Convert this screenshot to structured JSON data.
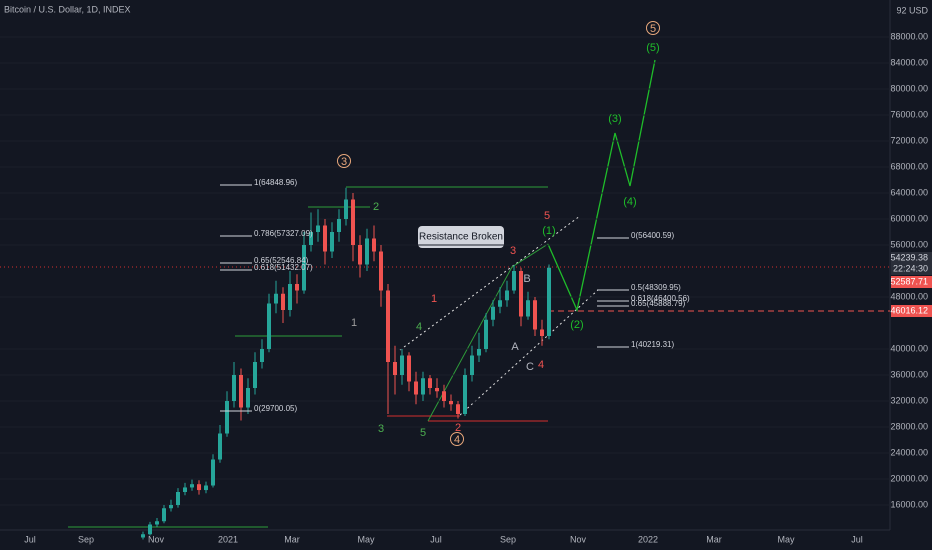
{
  "chart_data": {
    "type": "candlestick",
    "title": "Bitcoin / U.S. Dollar, 1D, INDEX",
    "currency": "92 USD",
    "up_color": "#26a69a",
    "down_color": "#ef5350",
    "ylim": [
      12154,
      93692
    ],
    "yticks": [
      {
        "value": 16000,
        "label": "16000.00"
      },
      {
        "value": 20000,
        "label": "20000.00"
      },
      {
        "value": 24000,
        "label": "24000.00"
      },
      {
        "value": 28000,
        "label": "28000.00"
      },
      {
        "value": 32000,
        "label": "32000.00"
      },
      {
        "value": 36000,
        "label": "36000.00"
      },
      {
        "value": 40000,
        "label": "40000.00"
      },
      {
        "value": 48000,
        "label": "48000.00"
      },
      {
        "value": 56000,
        "label": "56000.00"
      },
      {
        "value": 60000,
        "label": "60000.00"
      },
      {
        "value": 64000,
        "label": "64000.00"
      },
      {
        "value": 68000,
        "label": "68000.00"
      },
      {
        "value": 72000,
        "label": "72000.00"
      },
      {
        "value": 76000,
        "label": "76000.00"
      },
      {
        "value": 80000,
        "label": "80000.00"
      },
      {
        "value": 84000,
        "label": "84000.00"
      },
      {
        "value": 88000,
        "label": "88000.00"
      }
    ],
    "xticks": [
      "Jul",
      "Sep",
      "Nov",
      "2021",
      "Mar",
      "May",
      "Jul",
      "Sep",
      "Nov",
      "2022",
      "Mar",
      "May",
      "Jul"
    ],
    "ohlc": [
      [
        11000,
        11900,
        10700,
        11500
      ],
      [
        11500,
        13400,
        11300,
        13000
      ],
      [
        13000,
        14000,
        12600,
        13500
      ],
      [
        13500,
        16000,
        13200,
        15500
      ],
      [
        15500,
        16800,
        15000,
        16000
      ],
      [
        16000,
        18600,
        15600,
        18000
      ],
      [
        18000,
        19400,
        17500,
        18700
      ],
      [
        18700,
        19900,
        18200,
        19200
      ],
      [
        19200,
        19800,
        17600,
        18300
      ],
      [
        18300,
        19600,
        17800,
        19000
      ],
      [
        19000,
        23800,
        18700,
        23000
      ],
      [
        23000,
        28300,
        22500,
        27000
      ],
      [
        27000,
        33500,
        26500,
        32000
      ],
      [
        32000,
        38000,
        31000,
        36000
      ],
      [
        36000,
        37000,
        29000,
        31000
      ],
      [
        31000,
        35500,
        30000,
        34000
      ],
      [
        34000,
        39500,
        33000,
        38000
      ],
      [
        38000,
        41500,
        37000,
        40000
      ],
      [
        40000,
        48500,
        39500,
        47000
      ],
      [
        47000,
        50500,
        45500,
        48500
      ],
      [
        48500,
        49500,
        44000,
        46000
      ],
      [
        46000,
        52000,
        45000,
        50000
      ],
      [
        50000,
        51500,
        47000,
        49000
      ],
      [
        49000,
        58000,
        48500,
        56000
      ],
      [
        56000,
        61000,
        55000,
        58000
      ],
      [
        58000,
        61500,
        56500,
        59000
      ],
      [
        59000,
        60000,
        53000,
        55000
      ],
      [
        55000,
        59500,
        54000,
        58000
      ],
      [
        58000,
        61500,
        56500,
        60000
      ],
      [
        60000,
        64800,
        59000,
        63000
      ],
      [
        63000,
        64000,
        53500,
        56000
      ],
      [
        56000,
        57500,
        51000,
        53000
      ],
      [
        53000,
        58500,
        52000,
        57000
      ],
      [
        57000,
        59000,
        53500,
        55000
      ],
      [
        55000,
        56000,
        46500,
        49000
      ],
      [
        49000,
        50000,
        30000,
        38000
      ],
      [
        38000,
        40500,
        33000,
        36000
      ],
      [
        36000,
        40000,
        34500,
        39000
      ],
      [
        39000,
        39500,
        33500,
        35000
      ],
      [
        35000,
        36500,
        31500,
        33000
      ],
      [
        33000,
        36500,
        32000,
        35500
      ],
      [
        35500,
        36000,
        33000,
        34000
      ],
      [
        34000,
        35500,
        32500,
        33500
      ],
      [
        33500,
        34500,
        31000,
        32000
      ],
      [
        32000,
        33000,
        30500,
        31500
      ],
      [
        31500,
        32000,
        29300,
        30000
      ],
      [
        30000,
        37000,
        29700,
        36000
      ],
      [
        36000,
        40500,
        35000,
        39000
      ],
      [
        39000,
        42500,
        38000,
        40000
      ],
      [
        40000,
        45500,
        39500,
        44500
      ],
      [
        44500,
        47500,
        43500,
        46500
      ],
      [
        46500,
        49500,
        45500,
        47500
      ],
      [
        47500,
        50500,
        46500,
        49000
      ],
      [
        49000,
        52900,
        48500,
        52000
      ],
      [
        52000,
        52500,
        43500,
        45000
      ],
      [
        45000,
        48800,
        44500,
        47500
      ],
      [
        47500,
        48000,
        42000,
        43000
      ],
      [
        43000,
        44500,
        40500,
        42000
      ],
      [
        42000,
        53000,
        41500,
        52500
      ]
    ],
    "fib_labels": [
      "1(64848.96)",
      "0.786(57327.09)",
      "0.65(52546.84)",
      "0.618(51432.07)",
      "0(29700.05)",
      "0(56400.59)",
      "0.5(48309.95)",
      "0.618(46400.56)",
      "0.65(45888.79)",
      "1(40219.31)"
    ],
    "waves": [
      "3",
      "2",
      "1",
      "3",
      "4",
      "5",
      "4",
      "2",
      "1",
      "3",
      "5",
      "(1)",
      "B",
      "A",
      "C",
      "4",
      "(2)",
      "(3)",
      "(4)",
      "(5)",
      "5"
    ],
    "callout": "Resistance Broken",
    "price_markers": [
      "54239.38",
      "22:24:30",
      "52587.71",
      "46016.12"
    ]
  }
}
